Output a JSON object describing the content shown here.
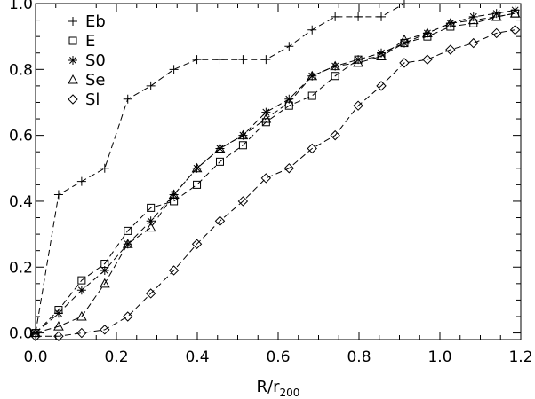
{
  "chart_data": {
    "type": "line",
    "title": "",
    "xlabel": "R/r",
    "xlabel_subscript": "200",
    "ylabel": "",
    "xlim": [
      0.0,
      1.2
    ],
    "ylim": [
      -0.02,
      1.0
    ],
    "x_ticks": [
      "0.0",
      "0.2",
      "0.4",
      "0.6",
      "0.8",
      "1.0",
      "1.2"
    ],
    "y_ticks": [
      "0.0",
      "0.2",
      "0.4",
      "0.6",
      "0.8",
      "1.0"
    ],
    "grid": false,
    "legend_position": "top-left",
    "series": [
      {
        "name": "Eb",
        "marker": "plus",
        "x": [
          0.0,
          0.057,
          0.114,
          0.171,
          0.228,
          0.285,
          0.342,
          0.399,
          0.456,
          0.513,
          0.57,
          0.627,
          0.684,
          0.741,
          0.798,
          0.855,
          0.912
        ],
        "y": [
          0.0,
          0.42,
          0.46,
          0.5,
          0.71,
          0.75,
          0.8,
          0.83,
          0.83,
          0.83,
          0.83,
          0.87,
          0.92,
          0.96,
          0.96,
          0.96,
          1.0
        ]
      },
      {
        "name": "E",
        "marker": "square",
        "x": [
          0.0,
          0.057,
          0.114,
          0.171,
          0.228,
          0.285,
          0.342,
          0.399,
          0.456,
          0.513,
          0.57,
          0.627,
          0.684,
          0.741,
          0.798,
          0.855,
          0.912,
          0.969,
          1.026,
          1.083,
          1.14,
          1.186
        ],
        "y": [
          0.0,
          0.07,
          0.16,
          0.21,
          0.31,
          0.38,
          0.4,
          0.45,
          0.52,
          0.57,
          0.64,
          0.69,
          0.72,
          0.78,
          0.83,
          0.84,
          0.88,
          0.9,
          0.93,
          0.94,
          0.96,
          0.97
        ]
      },
      {
        "name": "S0",
        "marker": "asterisk",
        "x": [
          0.0,
          0.057,
          0.114,
          0.171,
          0.228,
          0.285,
          0.342,
          0.399,
          0.456,
          0.513,
          0.57,
          0.627,
          0.684,
          0.741,
          0.798,
          0.855,
          0.912,
          0.969,
          1.026,
          1.083,
          1.14,
          1.186
        ],
        "y": [
          0.0,
          0.06,
          0.13,
          0.19,
          0.27,
          0.34,
          0.42,
          0.5,
          0.56,
          0.6,
          0.67,
          0.71,
          0.78,
          0.81,
          0.83,
          0.85,
          0.88,
          0.91,
          0.94,
          0.96,
          0.97,
          0.98
        ]
      },
      {
        "name": "Se",
        "marker": "triangle",
        "x": [
          0.0,
          0.057,
          0.114,
          0.171,
          0.228,
          0.285,
          0.342,
          0.399,
          0.456,
          0.513,
          0.57,
          0.627,
          0.684,
          0.741,
          0.798,
          0.855,
          0.912,
          0.969,
          1.026,
          1.083,
          1.14,
          1.186
        ],
        "y": [
          0.0,
          0.02,
          0.05,
          0.15,
          0.27,
          0.32,
          0.42,
          0.5,
          0.56,
          0.6,
          0.65,
          0.7,
          0.78,
          0.81,
          0.82,
          0.84,
          0.89,
          0.91,
          0.94,
          0.95,
          0.96,
          0.97
        ]
      },
      {
        "name": "Sl",
        "marker": "diamond",
        "x": [
          0.0,
          0.057,
          0.114,
          0.171,
          0.228,
          0.285,
          0.342,
          0.399,
          0.456,
          0.513,
          0.57,
          0.627,
          0.684,
          0.741,
          0.798,
          0.855,
          0.912,
          0.969,
          1.026,
          1.083,
          1.14,
          1.186
        ],
        "y": [
          -0.01,
          -0.01,
          0.0,
          0.01,
          0.05,
          0.12,
          0.19,
          0.27,
          0.34,
          0.4,
          0.47,
          0.5,
          0.56,
          0.6,
          0.69,
          0.75,
          0.82,
          0.83,
          0.86,
          0.88,
          0.91,
          0.92
        ]
      }
    ]
  }
}
